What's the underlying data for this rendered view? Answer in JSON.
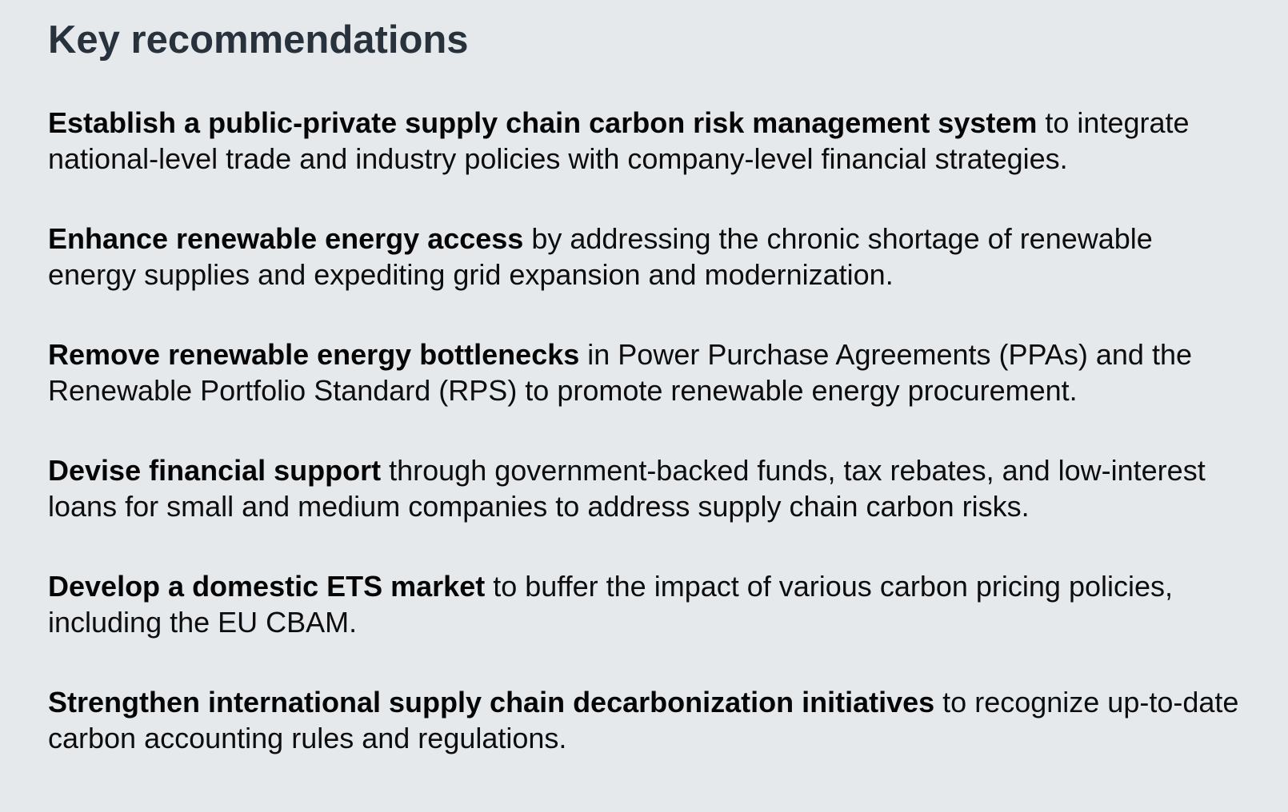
{
  "panel": {
    "title": "Key recommendations"
  },
  "recommendations": [
    {
      "bold": "Establish a public-private supply chain carbon risk management system",
      "rest": " to integrate national-level trade and industry policies with company-level financial strategies."
    },
    {
      "bold": "Enhance renewable energy access",
      "rest": " by addressing the chronic shortage of renewable energy supplies and expediting grid expansion and modernization."
    },
    {
      "bold": "Remove renewable energy bottlenecks",
      "rest": " in Power Purchase Agreements (PPAs) and the Renewable Portfolio Standard (RPS) to promote renewable energy procurement."
    },
    {
      "bold": "Devise financial support",
      "rest": " through government-backed funds, tax rebates, and low-interest loans for small and medium companies to address supply chain carbon risks."
    },
    {
      "bold": "Develop a domestic ETS market",
      "rest": " to buffer the impact of various carbon pricing policies, including the EU CBAM."
    },
    {
      "bold": "Strengthen international supply chain decarbonization initiatives",
      "rest": " to recognize up-to-date carbon accounting rules and regulations."
    }
  ],
  "colors": {
    "panel_background": "#e5e9ec",
    "heading_text": "#28323c",
    "body_text": "#0d0d0e"
  }
}
